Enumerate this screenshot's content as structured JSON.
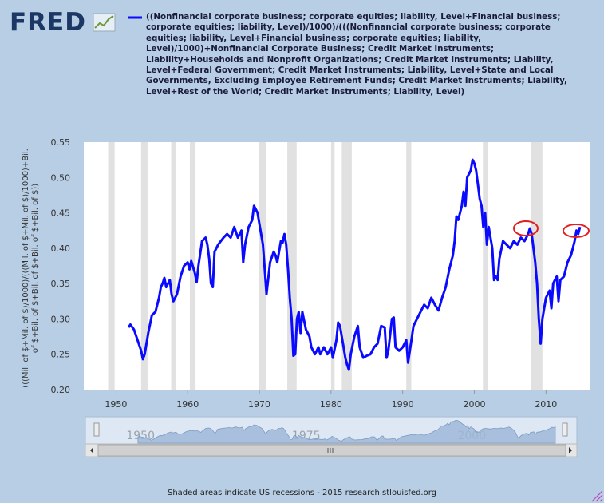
{
  "logo": "FRED",
  "footer": "Shaded areas indicate US recessions - 2015 research.stlouisfed.org",
  "chart_data": {
    "type": "line",
    "ylabel": "(((Mil. of $+Mil. of $)/1000)/(((Mil. of $+Mil. of $)/1000)+Bil. of $+Bil. of $+Bil. of $+Bil. of $+Bil. of $))",
    "xlim": [
      1945.5,
      2016.2
    ],
    "xticks": [
      1950,
      1960,
      1970,
      1980,
      1990,
      2000,
      2010
    ],
    "ylim": [
      0.2,
      0.55
    ],
    "yticks": [
      {
        "value": 0.2,
        "label": "0.20"
      },
      0.25,
      {
        "value": 0.3,
        "label": "0.30"
      },
      0.35,
      {
        "value": 0.4,
        "label": "0.40"
      },
      0.45,
      {
        "value": 0.5,
        "label": "0.50"
      },
      0.55
    ],
    "recessions": [
      [
        1948.9,
        1949.8
      ],
      [
        1953.5,
        1954.4
      ],
      [
        1957.7,
        1958.3
      ],
      [
        1960.3,
        1961.1
      ],
      [
        1969.9,
        1970.9
      ],
      [
        1973.9,
        1975.2
      ],
      [
        1980.0,
        1980.5
      ],
      [
        1981.5,
        1982.9
      ],
      [
        1990.5,
        1991.2
      ],
      [
        2001.2,
        2001.9
      ],
      [
        2007.9,
        2009.5
      ]
    ],
    "navigator_labels": [
      1950,
      1975,
      2000
    ],
    "x": [
      1951.75,
      1952.0,
      1952.5,
      1953.0,
      1953.5,
      1953.75,
      1954.0,
      1954.5,
      1955.0,
      1955.5,
      1956.0,
      1956.25,
      1956.5,
      1956.75,
      1957.0,
      1957.5,
      1957.75,
      1958.0,
      1958.5,
      1959.0,
      1959.5,
      1960.0,
      1960.25,
      1960.5,
      1961.0,
      1961.25,
      1961.5,
      1962.0,
      1962.5,
      1962.75,
      1963.0,
      1963.25,
      1963.5,
      1963.75,
      1964.25,
      1965.0,
      1965.5,
      1966.0,
      1966.5,
      1967.0,
      1967.5,
      1967.75,
      1968.0,
      1968.5,
      1969.0,
      1969.25,
      1969.75,
      1970.0,
      1970.5,
      1970.75,
      1971.0,
      1971.5,
      1972.0,
      1972.25,
      1972.5,
      1973.0,
      1973.25,
      1973.5,
      1973.75,
      1974.0,
      1974.25,
      1974.5,
      1974.75,
      1975.0,
      1975.25,
      1975.5,
      1975.75,
      1976.0,
      1976.5,
      1977.0,
      1977.25,
      1977.75,
      1978.25,
      1978.5,
      1979.0,
      1979.5,
      1980.0,
      1980.25,
      1980.75,
      1981.0,
      1981.25,
      1981.75,
      1982.0,
      1982.25,
      1982.5,
      1982.75,
      1983.25,
      1983.75,
      1984.0,
      1984.5,
      1985.0,
      1985.5,
      1986.0,
      1986.5,
      1987.0,
      1987.5,
      1987.75,
      1988.0,
      1988.5,
      1988.75,
      1989.0,
      1989.5,
      1990.0,
      1990.5,
      1990.75,
      1991.0,
      1991.5,
      1992.0,
      1992.5,
      1993.0,
      1993.5,
      1994.0,
      1994.5,
      1995.0,
      1995.5,
      1996.0,
      1996.5,
      1997.0,
      1997.25,
      1997.5,
      1997.75,
      1998.25,
      1998.5,
      1998.75,
      1999.0,
      1999.5,
      1999.75,
      2000.0,
      2000.25,
      2000.5,
      2000.75,
      2001.0,
      2001.25,
      2001.5,
      2001.75,
      2002.0,
      2002.5,
      2002.75,
      2003.0,
      2003.25,
      2003.5,
      2004.0,
      2004.5,
      2005.0,
      2005.5,
      2006.0,
      2006.5,
      2007.0,
      2007.5,
      2007.75,
      2008.0,
      2008.5,
      2008.75,
      2009.0,
      2009.25,
      2009.5,
      2010.0,
      2010.5,
      2010.75,
      2011.0,
      2011.5,
      2011.75,
      2012.0,
      2012.5,
      2013.0,
      2013.5,
      2014.0,
      2014.25,
      2014.5,
      2014.75
    ],
    "series": [
      {
        "name": "((Nonfinancial corporate business; corporate equities; liability, Level+Financial business; corporate equities; liability, Level)/1000)/(((Nonfinancial corporate business; corporate equities; liability, Level+Financial business; corporate equities; liability, Level)/1000)+Nonfinancial Corporate Business; Credit Market Instruments; Liability+Households and Nonprofit Organizations; Credit Market Instruments; Liability, Level+Federal Government; Credit Market Instruments; Liability, Level+State and Local Governments, Excluding Employee Retirement Funds; Credit Market Instruments; Liability, Level+Rest of the World; Credit Market Instruments; Liability, Level)",
        "color": "#0a0aff",
        "values": [
          0.288,
          0.292,
          0.285,
          0.27,
          0.255,
          0.243,
          0.25,
          0.28,
          0.305,
          0.31,
          0.33,
          0.345,
          0.35,
          0.358,
          0.345,
          0.355,
          0.335,
          0.325,
          0.335,
          0.36,
          0.375,
          0.38,
          0.37,
          0.382,
          0.365,
          0.352,
          0.375,
          0.41,
          0.415,
          0.405,
          0.385,
          0.35,
          0.345,
          0.395,
          0.405,
          0.415,
          0.42,
          0.415,
          0.43,
          0.415,
          0.425,
          0.38,
          0.405,
          0.43,
          0.44,
          0.46,
          0.45,
          0.435,
          0.405,
          0.37,
          0.335,
          0.38,
          0.395,
          0.39,
          0.38,
          0.41,
          0.408,
          0.42,
          0.405,
          0.37,
          0.33,
          0.3,
          0.248,
          0.25,
          0.3,
          0.31,
          0.28,
          0.31,
          0.285,
          0.275,
          0.26,
          0.25,
          0.26,
          0.25,
          0.26,
          0.25,
          0.26,
          0.245,
          0.27,
          0.295,
          0.29,
          0.26,
          0.245,
          0.235,
          0.228,
          0.25,
          0.275,
          0.29,
          0.26,
          0.245,
          0.248,
          0.25,
          0.26,
          0.265,
          0.29,
          0.288,
          0.245,
          0.255,
          0.3,
          0.302,
          0.26,
          0.255,
          0.26,
          0.27,
          0.238,
          0.255,
          0.29,
          0.3,
          0.31,
          0.32,
          0.315,
          0.33,
          0.32,
          0.312,
          0.33,
          0.345,
          0.37,
          0.39,
          0.41,
          0.445,
          0.44,
          0.46,
          0.48,
          0.46,
          0.5,
          0.51,
          0.525,
          0.52,
          0.51,
          0.49,
          0.47,
          0.46,
          0.43,
          0.45,
          0.405,
          0.43,
          0.4,
          0.355,
          0.36,
          0.355,
          0.385,
          0.41,
          0.405,
          0.4,
          0.41,
          0.405,
          0.415,
          0.41,
          0.42,
          0.428,
          0.42,
          0.38,
          0.35,
          0.3,
          0.265,
          0.3,
          0.33,
          0.34,
          0.315,
          0.35,
          0.36,
          0.325,
          0.355,
          0.36,
          0.38,
          0.39,
          0.41,
          0.425,
          0.42,
          0.43
        ]
      }
    ]
  }
}
